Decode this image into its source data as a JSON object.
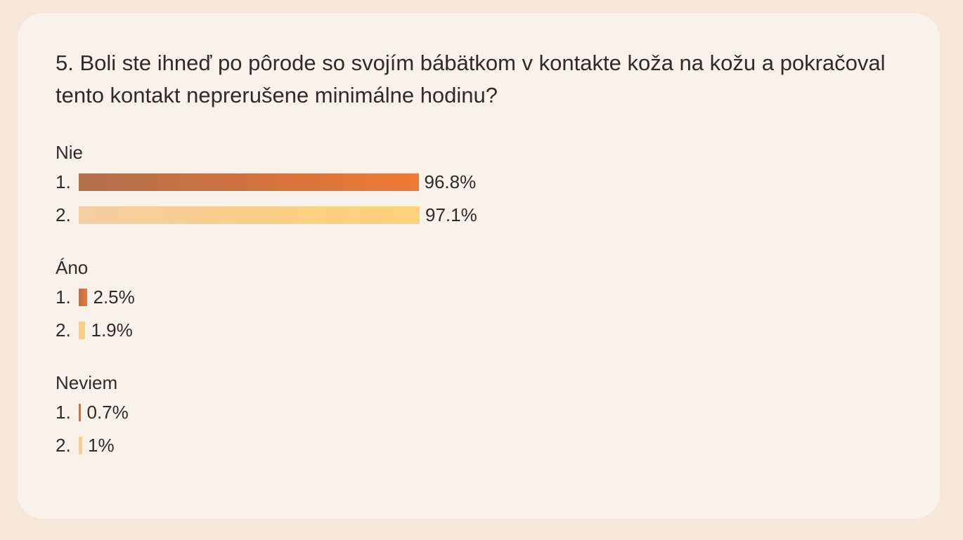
{
  "question": "5. Boli ste ihneď po pôrode so svojím bábätkom v kontakte koža na kožu a pokračoval tento kontakt neprerušene minimálne hodinu?",
  "colors": {
    "series1": "#d4733e",
    "series2": "#fcd178",
    "card_background": "#f9f2ea",
    "page_background": "#f5e8da"
  },
  "chart_data": {
    "type": "bar",
    "orientation": "horizontal",
    "categories": [
      "Nie",
      "Áno",
      "Neviem"
    ],
    "series": [
      {
        "label": "1.",
        "values": [
          96.8,
          2.5,
          0.7
        ],
        "value_labels": [
          "96.8%",
          "2.5%",
          "0.7%"
        ]
      },
      {
        "label": "2.",
        "values": [
          97.1,
          1.9,
          1.0
        ],
        "value_labels": [
          "97.1%",
          "1.9%",
          "1%"
        ]
      }
    ],
    "unit": "%",
    "xlim": [
      0,
      97.1
    ]
  }
}
